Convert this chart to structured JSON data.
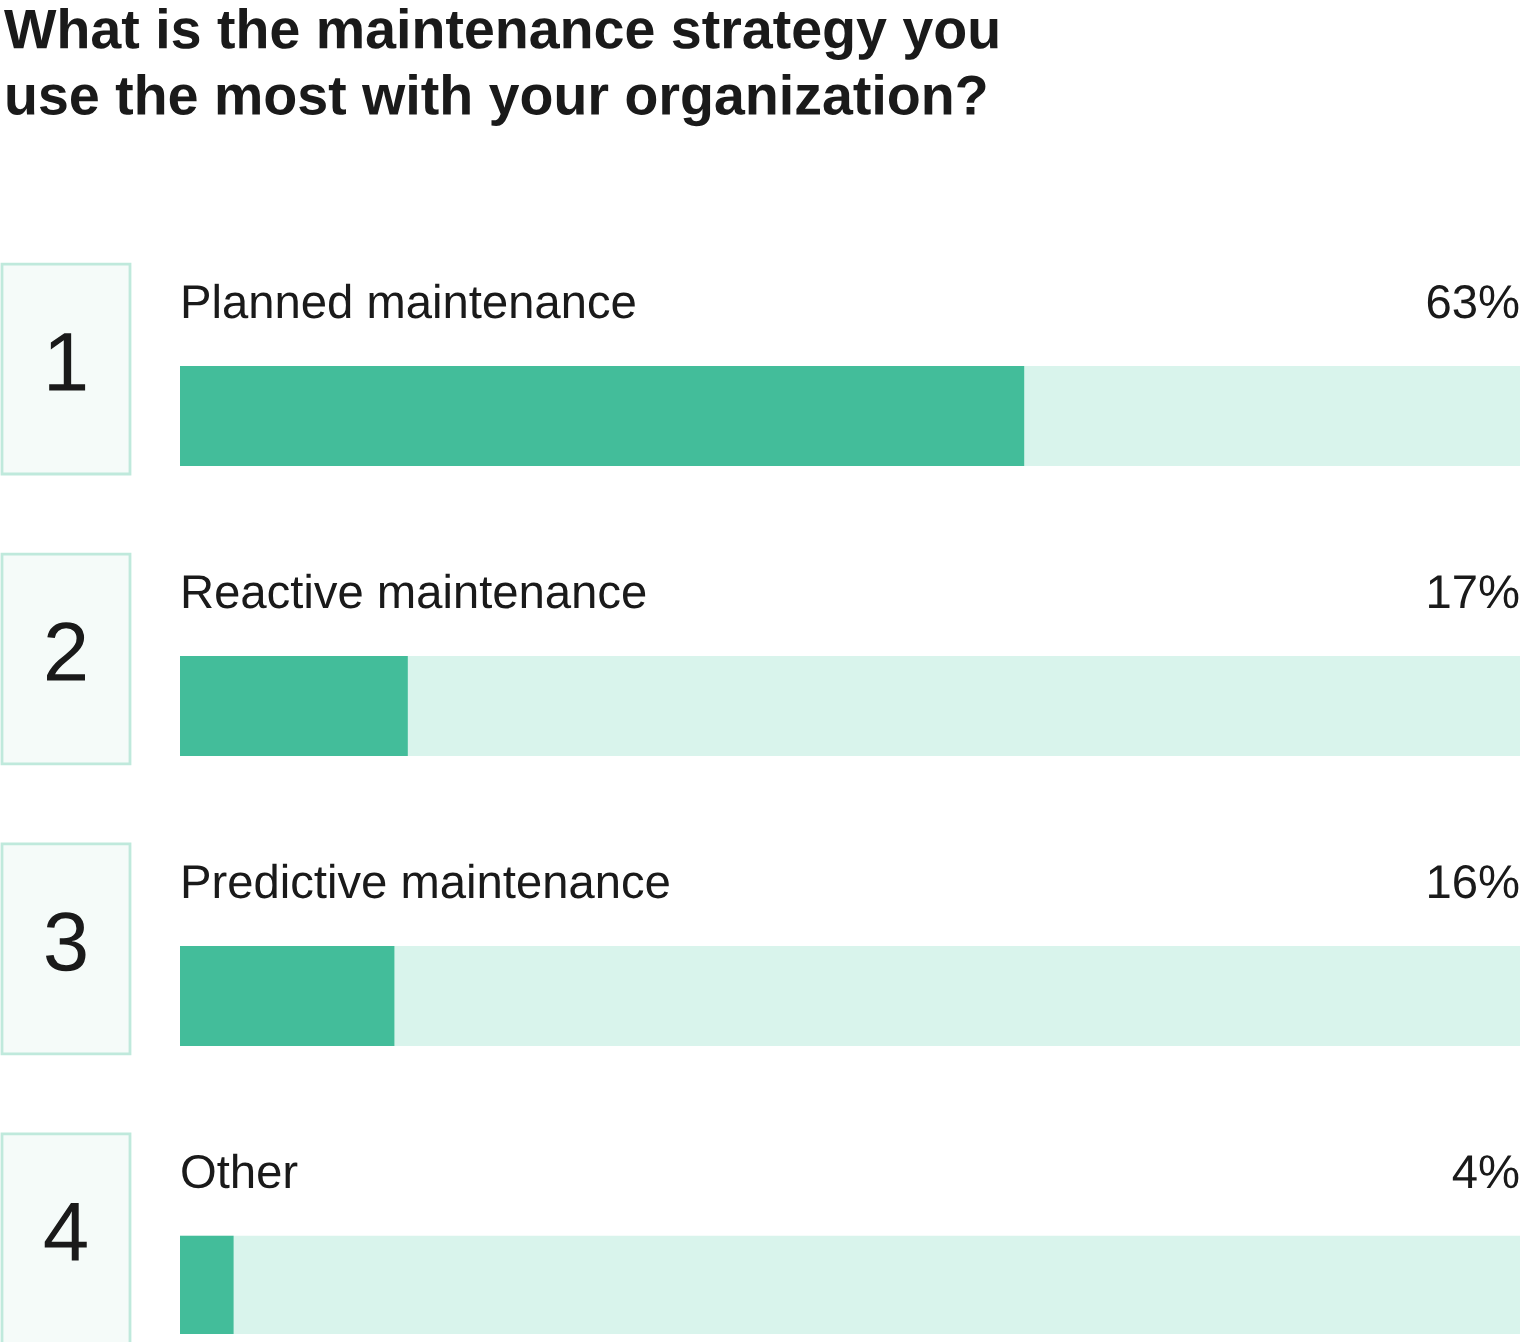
{
  "chart_data": {
    "type": "bar",
    "orientation": "horizontal",
    "title": "What is the maintenance strategy you\nuse the most with your organization?",
    "categories": [
      "Planned maintenance",
      "Reactive maintenance",
      "Predictive maintenance",
      "Other"
    ],
    "values": [
      63,
      17,
      16,
      4
    ],
    "value_labels": [
      "63%",
      "17%",
      "16%",
      "4%"
    ],
    "annotations": [
      "1",
      "2",
      "3",
      "4"
    ],
    "color": "#43bd9a",
    "xlim": [
      0,
      100
    ]
  }
}
